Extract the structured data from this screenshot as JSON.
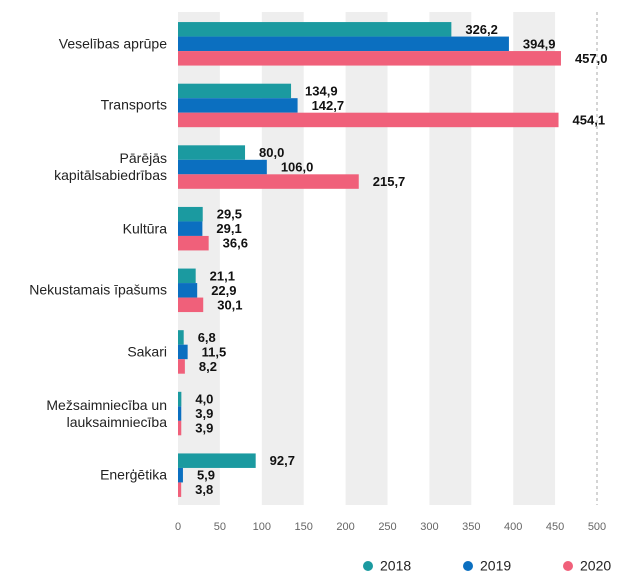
{
  "chart_data": {
    "type": "bar",
    "orientation": "horizontal",
    "categories": [
      "Veselības aprūpe",
      "Transports",
      "Pārējās kapitālsabiedrības",
      "Kultūra",
      "Nekustamais īpašums",
      "Sakari",
      "Mežsaimniecība un lauksaimniecība",
      "Enerģētika"
    ],
    "series": [
      {
        "name": "2018",
        "color": "#1b9aa0",
        "values": [
          326.2,
          134.9,
          80.0,
          29.5,
          21.1,
          6.8,
          4.0,
          92.7
        ],
        "value_labels": [
          "326,2",
          "134,9",
          "80,0",
          "29,5",
          "21,1",
          "6,8",
          "4,0",
          "92,7"
        ]
      },
      {
        "name": "2019",
        "color": "#0b6fc0",
        "values": [
          394.9,
          142.7,
          106.0,
          29.1,
          22.9,
          11.5,
          3.9,
          5.9
        ],
        "value_labels": [
          "394,9",
          "142,7",
          "106,0",
          "29,1",
          "22,9",
          "11,5",
          "3,9",
          "5,9"
        ]
      },
      {
        "name": "2020",
        "color": "#f0607a",
        "values": [
          457.0,
          454.1,
          215.7,
          36.6,
          30.1,
          8.2,
          3.9,
          3.8
        ],
        "value_labels": [
          "457,0",
          "454,1",
          "215,7",
          "36,6",
          "30,1",
          "8,2",
          "3,9",
          "3,8"
        ]
      }
    ],
    "xlim": [
      0,
      500
    ],
    "xticks": [
      0,
      50,
      100,
      150,
      200,
      250,
      300,
      350,
      400,
      450,
      500
    ],
    "legend": "bottom-right"
  }
}
